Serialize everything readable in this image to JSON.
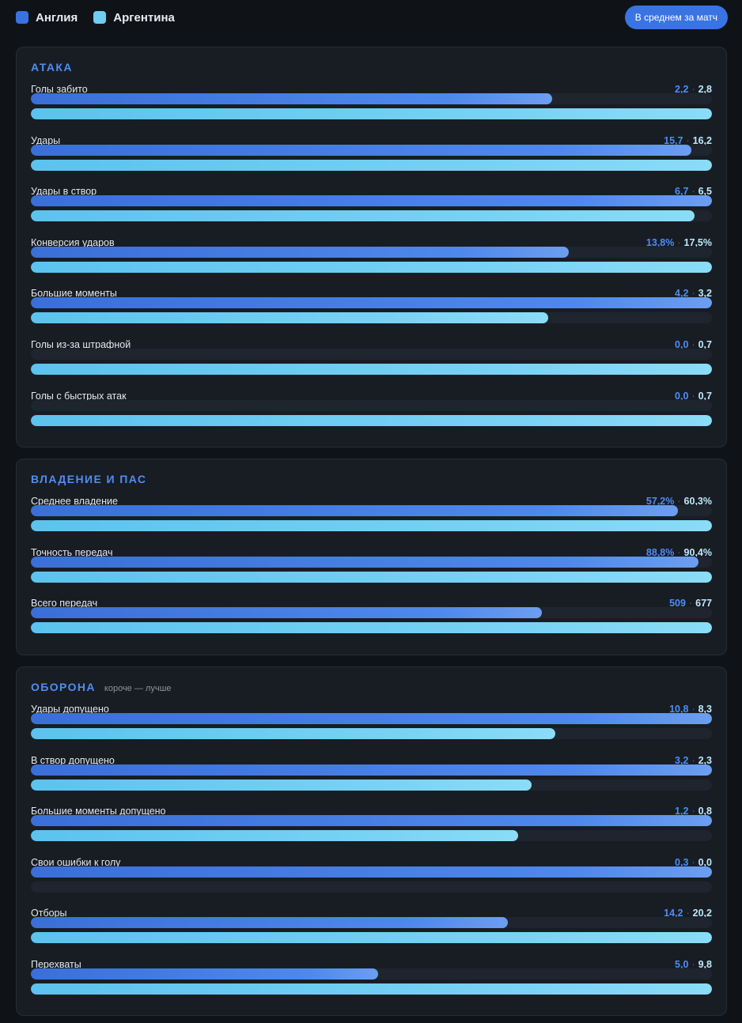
{
  "legend": {
    "teams": [
      {
        "name": "Англия",
        "color": "#3a72e0"
      },
      {
        "name": "Аргентина",
        "color": "#6fcdf2"
      }
    ]
  },
  "mode_button": {
    "label": "В среднем за матч"
  },
  "sections": [
    {
      "title": "АТАКА",
      "note": "",
      "rows": [
        {
          "label": "Голы забито",
          "eng": "2,2",
          "arg": "2,8",
          "eng_pct": 76.5,
          "arg_pct": 100
        },
        {
          "label": "Удары",
          "eng": "15,7",
          "arg": "16,2",
          "eng_pct": 97,
          "arg_pct": 100
        },
        {
          "label": "Удары в створ",
          "eng": "6,7",
          "arg": "6,5",
          "eng_pct": 100,
          "arg_pct": 97.5
        },
        {
          "label": "Конверсия ударов",
          "eng": "13,8%",
          "arg": "17,5%",
          "eng_pct": 79,
          "arg_pct": 100
        },
        {
          "label": "Большие моменты",
          "eng": "4,2",
          "arg": "3,2",
          "eng_pct": 100,
          "arg_pct": 76
        },
        {
          "label": "Голы из-за штрафной",
          "eng": "0,0",
          "arg": "0,7",
          "eng_pct": 0,
          "arg_pct": 100
        },
        {
          "label": "Голы с быстрых атак",
          "eng": "0,0",
          "arg": "0,7",
          "eng_pct": 0,
          "arg_pct": 100
        }
      ]
    },
    {
      "title": "ВЛАДЕНИЕ И ПАС",
      "note": "",
      "rows": [
        {
          "label": "Среднее владение",
          "eng": "57,2%",
          "arg": "60,3%",
          "eng_pct": 95,
          "arg_pct": 100
        },
        {
          "label": "Точность передач",
          "eng": "88,8%",
          "arg": "90,4%",
          "eng_pct": 98,
          "arg_pct": 100
        },
        {
          "label": "Всего передач",
          "eng": "509",
          "arg": "677",
          "eng_pct": 75,
          "arg_pct": 100
        }
      ]
    },
    {
      "title": "ОБОРОНА",
      "note": "короче — лучше",
      "rows": [
        {
          "label": "Удары допущено",
          "eng": "10,8",
          "arg": "8,3",
          "eng_pct": 100,
          "arg_pct": 77
        },
        {
          "label": "В створ допущено",
          "eng": "3,2",
          "arg": "2,3",
          "eng_pct": 100,
          "arg_pct": 73.5
        },
        {
          "label": "Большие моменты допущено",
          "eng": "1,2",
          "arg": "0,8",
          "eng_pct": 100,
          "arg_pct": 71.5
        },
        {
          "label": "Свои ошибки к голу",
          "eng": "0,3",
          "arg": "0,0",
          "eng_pct": 100,
          "arg_pct": 0
        },
        {
          "label": "Отборы",
          "eng": "14,2",
          "arg": "20,2",
          "eng_pct": 70,
          "arg_pct": 100
        },
        {
          "label": "Перехваты",
          "eng": "5,0",
          "arg": "9,8",
          "eng_pct": 51,
          "arg_pct": 100
        }
      ]
    }
  ]
}
